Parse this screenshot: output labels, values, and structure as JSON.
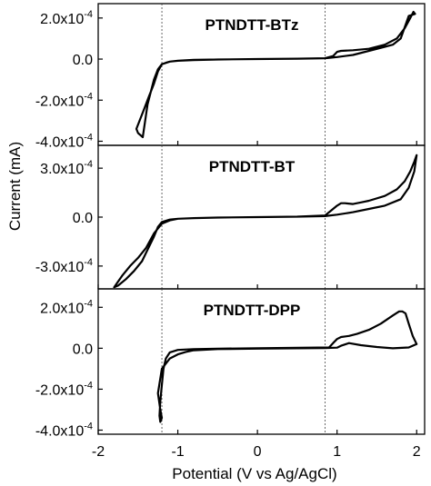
{
  "chart_data": {
    "type": "line",
    "xlabel": "Potential (V vs Ag/AgCl)",
    "ylabel": "Current (mA)",
    "xlim": [
      -2.0,
      2.1
    ],
    "x_ticks": [
      "-2",
      "-1",
      "0",
      "1",
      "2"
    ],
    "x_tick_values": [
      -2,
      -1,
      0,
      1,
      2
    ],
    "reference_lines_x": [
      -1.2,
      0.85
    ],
    "panels": [
      {
        "title": "PTNDTT-BTz",
        "ylim": [
          -0.00042,
          0.00027
        ],
        "y_ticks": [
          "2.0x10-4",
          "0.0",
          "-2.0x10-4",
          "-4.0x10-4"
        ],
        "y_tick_values": [
          0.0002,
          0.0,
          -0.0002,
          -0.0004
        ],
        "series": [
          {
            "x": [
              -1.44,
              -1.5,
              -1.52,
              -1.48,
              -1.42,
              -1.36,
              -1.3,
              -1.25,
              -1.2,
              -1.1,
              -1.0,
              -0.8,
              -0.5,
              0.0,
              0.5,
              0.85,
              0.95,
              1.0,
              1.05,
              1.2,
              1.4,
              1.6,
              1.75,
              1.85,
              1.92,
              1.96,
              1.98,
              1.9,
              1.8,
              1.7,
              1.6,
              1.4,
              1.2,
              1.0,
              0.85,
              0.5,
              0.0,
              -0.5,
              -0.8,
              -1.0,
              -1.1,
              -1.15,
              -1.2,
              -1.25,
              -1.3,
              -1.38,
              -1.44
            ],
            "y": [
              -0.00038,
              -0.00036,
              -0.00034,
              -0.0003,
              -0.00024,
              -0.00018,
              -0.00012,
              -6e-05,
              -2.5e-05,
              -1.2e-05,
              -8e-06,
              -5e-06,
              -2e-06,
              0.0,
              2e-06,
              4e-06,
              1.5e-05,
              3.5e-05,
              4e-05,
              4.3e-05,
              5e-05,
              7e-05,
              0.0001,
              0.00015,
              0.0002,
              0.00023,
              0.00022,
              0.00021,
              0.0001,
              7e-05,
              6e-05,
              4e-05,
              2e-05,
              1e-05,
              4e-06,
              2e-06,
              0.0,
              -2e-06,
              -4e-06,
              -8e-06,
              -1.2e-05,
              -1.8e-05,
              -2.5e-05,
              -5e-05,
              -0.0001,
              -0.00022,
              -0.00038
            ]
          }
        ]
      },
      {
        "title": "PTNDTT-BT",
        "ylim": [
          -0.00044,
          0.00044
        ],
        "y_ticks": [
          "3.0x10-4",
          "0.0",
          "-3.0x10-4"
        ],
        "y_tick_values": [
          0.0003,
          0.0,
          -0.0003
        ],
        "series": [
          {
            "x": [
              -1.8,
              -1.75,
              -1.65,
              -1.55,
              -1.45,
              -1.38,
              -1.3,
              -1.25,
              -1.2,
              -1.1,
              -1.0,
              -0.8,
              -0.5,
              0.0,
              0.5,
              0.85,
              0.9,
              0.95,
              1.0,
              1.05,
              1.1,
              1.2,
              1.3,
              1.4,
              1.6,
              1.75,
              1.85,
              1.92,
              1.97,
              2.0,
              1.97,
              1.9,
              1.8,
              1.6,
              1.4,
              1.2,
              1.0,
              0.85,
              0.5,
              0.0,
              -0.5,
              -0.8,
              -1.0,
              -1.1,
              -1.2,
              -1.3,
              -1.4,
              -1.5,
              -1.6,
              -1.7,
              -1.8
            ],
            "y": [
              -0.00043,
              -0.00042,
              -0.00038,
              -0.00033,
              -0.00027,
              -0.0002,
              -0.00012,
              -6e-05,
              -3e-05,
              -1.5e-05,
              -1e-05,
              -6e-06,
              -3e-06,
              0.0,
              3e-06,
              1e-05,
              3e-05,
              5e-05,
              7e-05,
              8.5e-05,
              8.5e-05,
              8e-05,
              9e-05,
              0.0001,
              0.00013,
              0.00017,
              0.00022,
              0.00028,
              0.00034,
              0.00038,
              0.00028,
              0.00018,
              0.00011,
              7e-05,
              5e-05,
              3e-05,
              1.5e-05,
              6e-06,
              3e-06,
              0.0,
              -3e-06,
              -6e-06,
              -1e-05,
              -2e-05,
              -4e-05,
              -0.0001,
              -0.00019,
              -0.00025,
              -0.0003,
              -0.00036,
              -0.00043
            ]
          }
        ]
      },
      {
        "title": "PTNDTT-DPP",
        "ylim": [
          -0.00042,
          0.00029
        ],
        "y_ticks": [
          "2.0x10-4",
          "0.0",
          "-2.0x10-4",
          "-4.0x10-4"
        ],
        "y_tick_values": [
          0.0002,
          0.0,
          -0.0002,
          -0.0004
        ],
        "series": [
          {
            "x": [
              -1.2,
              -1.22,
              -1.23,
              -1.22,
              -1.2,
              -1.18,
              -1.15,
              -1.1,
              -1.0,
              -0.8,
              -0.5,
              0.0,
              0.5,
              0.9,
              0.95,
              1.0,
              1.05,
              1.15,
              1.25,
              1.4,
              1.55,
              1.7,
              1.78,
              1.82,
              1.86,
              1.9,
              1.95,
              2.0,
              1.9,
              1.7,
              1.5,
              1.3,
              1.15,
              1.05,
              1.0,
              0.85,
              0.5,
              0.0,
              -0.5,
              -0.8,
              -0.9,
              -1.0,
              -1.1,
              -1.2,
              -1.25,
              -1.22,
              -1.2
            ],
            "y": [
              -0.00034,
              -0.00036,
              -0.00033,
              -0.00026,
              -0.00018,
              -0.0001,
              -5e-05,
              -2e-05,
              -8e-06,
              -4e-06,
              -2e-06,
              0.0,
              2e-06,
              4e-06,
              2.5e-05,
              4.5e-05,
              5.5e-05,
              6e-05,
              7e-05,
              9e-05,
              0.00012,
              0.00016,
              0.00018,
              0.00018,
              0.00017,
              0.00012,
              6e-05,
              2e-05,
              4e-06,
              0.0,
              6e-06,
              1.5e-05,
              2.5e-05,
              1.2e-05,
              3e-06,
              1e-06,
              0.0,
              -2e-06,
              -4e-06,
              -1e-05,
              -1.8e-05,
              -3e-05,
              -5e-05,
              -0.0001,
              -0.00022,
              -0.0003,
              -0.00034
            ]
          }
        ]
      }
    ]
  }
}
